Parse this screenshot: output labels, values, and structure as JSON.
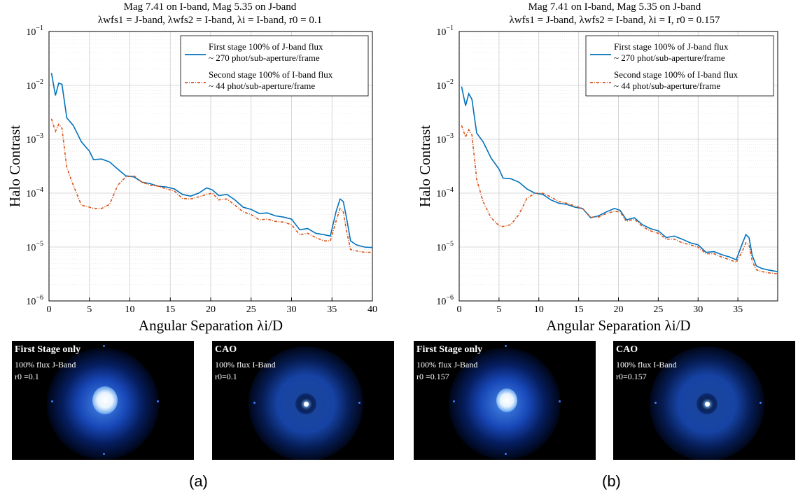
{
  "panels": [
    {
      "id": "a",
      "label": "(a)",
      "title_line1": "Mag 7.41 on I-band, Mag 5.35 on J-band",
      "title_line2": "λwfs1 = J-band, λwfs2 = I-band, λi = I-band, r0 = 0.1",
      "images": [
        {
          "title": "First Stage only",
          "line1": "100% flux J-Band",
          "line2": "r0 =0.1",
          "type": "first"
        },
        {
          "title": "CAO",
          "line1": "100% flux I-Band",
          "line2": "r0=0.1",
          "type": "cao"
        }
      ]
    },
    {
      "id": "b",
      "label": "(b)",
      "title_line1": "Mag 7.41 on I-band, Mag 5.35 on J-band",
      "title_line2": "λwfs1 = J-band, λwfs2 = I-band, λi = I, r0 = 0.157",
      "images": [
        {
          "title": "First Stage only",
          "line1": "100% flux J-Band",
          "line2": "r0 =0.157",
          "type": "first"
        },
        {
          "title": "CAO",
          "line1": "100% flux I-Band",
          "line2": "r0=0.157",
          "type": "cao"
        }
      ]
    }
  ],
  "chart_data": [
    {
      "type": "line",
      "xlabel": "Angular Separation λi/D",
      "ylabel": "Halo Contrast",
      "xlim": [
        0,
        40
      ],
      "ylim": [
        1e-06,
        0.1
      ],
      "yscale": "log",
      "xticks": [
        0,
        5,
        10,
        15,
        20,
        25,
        30,
        35,
        40
      ],
      "yticks": [
        "10^-6",
        "10^-5",
        "10^-4",
        "10^-3",
        "10^-2",
        "10^-1"
      ],
      "grid": true,
      "legend_position": "top-right",
      "colors": {
        "series1": "#0072bd",
        "series2": "#d95319"
      },
      "series": [
        {
          "name": "First stage 100% of J-band flux",
          "name_line2": "~ 270 phot/sub-aperture/frame",
          "style": "solid",
          "x": [
            0.3,
            0.8,
            1.2,
            1.6,
            2.2,
            3,
            4,
            5,
            5.5,
            6.5,
            7.5,
            8.5,
            9.5,
            10.5,
            11.5,
            12.5,
            13.5,
            14.5,
            15.5,
            16.5,
            17.5,
            18.5,
            19.5,
            20.2,
            21,
            22,
            23,
            24,
            25,
            26,
            27,
            28,
            29,
            30,
            31,
            32,
            33,
            34,
            34.8,
            35.5,
            36,
            36.4,
            36.8,
            37.3,
            38,
            39,
            40
          ],
          "y": [
            0.017,
            0.0065,
            0.011,
            0.0105,
            0.0025,
            0.0018,
            0.0009,
            0.0006,
            0.00042,
            0.00043,
            0.00038,
            0.00028,
            0.00021,
            0.0002,
            0.00016,
            0.00015,
            0.000135,
            0.00013,
            0.00012,
            9.5e-05,
            8.8e-05,
            0.0001,
            0.000125,
            0.000115,
            9e-05,
            9.5e-05,
            7.5e-05,
            5.5e-05,
            5e-05,
            4.2e-05,
            4.3e-05,
            3.8e-05,
            3.6e-05,
            3.3e-05,
            2.1e-05,
            2.2e-05,
            1.8e-05,
            1.7e-05,
            1.6e-05,
            4.5e-05,
            7.8e-05,
            7e-05,
            3.5e-05,
            1.3e-05,
            1.1e-05,
            1e-05,
            9.8e-06
          ]
        },
        {
          "name": "Second stage 100% of I-band flux",
          "name_line2": "~ 44 phot/sub-aperture/frame",
          "style": "dashed",
          "x": [
            0.3,
            0.8,
            1.2,
            1.6,
            2.2,
            3,
            4,
            5,
            5.5,
            6.5,
            7.5,
            8.5,
            9.5,
            10.5,
            11.5,
            12.5,
            13.5,
            14.5,
            15.5,
            16.5,
            17.5,
            18.5,
            19.5,
            20.2,
            21,
            22,
            23,
            24,
            25,
            26,
            27,
            28,
            29,
            30,
            31,
            32,
            33,
            34,
            34.8,
            35.5,
            36,
            36.4,
            36.8,
            37.3,
            38,
            39,
            40
          ],
          "y": [
            0.0024,
            0.0014,
            0.0019,
            0.0016,
            0.0003,
            0.00014,
            6e-05,
            5.5e-05,
            5.2e-05,
            5.2e-05,
            6.2e-05,
            0.00014,
            0.0002,
            0.00021,
            0.00016,
            0.00014,
            0.000135,
            0.00012,
            0.00011,
            8e-05,
            7.8e-05,
            8.5e-05,
            9.5e-05,
            0.0001,
            7.5e-05,
            7.8e-05,
            6e-05,
            4.5e-05,
            4e-05,
            3.2e-05,
            3.3e-05,
            3e-05,
            2.9e-05,
            2.6e-05,
            1.7e-05,
            1.8e-05,
            1.5e-05,
            1.3e-05,
            1.3e-05,
            3e-05,
            5.2e-05,
            4.5e-05,
            2e-05,
            9e-06,
            8.5e-06,
            8e-06,
            8e-06
          ]
        }
      ]
    },
    {
      "type": "line",
      "xlabel": "Angular Separation λi/D",
      "ylabel": "Halo Contrast",
      "xlim": [
        0,
        40
      ],
      "ylim": [
        1e-06,
        0.1
      ],
      "yscale": "log",
      "xticks": [
        0,
        5,
        10,
        15,
        20,
        25,
        30,
        35
      ],
      "yticks": [
        "10^-6",
        "10^-5",
        "10^-4",
        "10^-3",
        "10^-2",
        "10^-1"
      ],
      "grid": true,
      "legend_position": "top-right",
      "colors": {
        "series1": "#0072bd",
        "series2": "#d95319"
      },
      "series": [
        {
          "name": "First stage 100% of J-band flux",
          "name_line2": "~ 270 phot/sub-aperture/frame",
          "style": "solid",
          "x": [
            0.3,
            0.8,
            1.2,
            1.6,
            2.2,
            3,
            4,
            5,
            5.5,
            6.5,
            7.5,
            8.5,
            9.5,
            10.5,
            11.5,
            12.5,
            13.5,
            14.5,
            15.5,
            16.5,
            17.5,
            18.5,
            19.5,
            20.2,
            21,
            22,
            23,
            24,
            25,
            26,
            27,
            28,
            29,
            30,
            31,
            32,
            33,
            34,
            34.8,
            35.5,
            36,
            36.4,
            36.8,
            37.3,
            38,
            39,
            40
          ],
          "y": [
            0.0095,
            0.0042,
            0.007,
            0.0055,
            0.0013,
            0.0009,
            0.00045,
            0.00028,
            0.00019,
            0.000185,
            0.00016,
            0.00012,
            0.0001,
            9.5e-05,
            7.5e-05,
            6.5e-05,
            6.2e-05,
            5.5e-05,
            5.2e-05,
            3.5e-05,
            3.8e-05,
            4.5e-05,
            5.2e-05,
            4.8e-05,
            3.2e-05,
            3.5e-05,
            2.6e-05,
            2.2e-05,
            2e-05,
            1.5e-05,
            1.6e-05,
            1.4e-05,
            1.2e-05,
            1.1e-05,
            8e-06,
            8.2e-06,
            7.2e-06,
            6.5e-06,
            5.8e-06,
            1.1e-05,
            1.7e-05,
            1.5e-05,
            7e-06,
            4.5e-06,
            4e-06,
            3.7e-06,
            3.5e-06
          ]
        },
        {
          "name": "Second stage 100% of I-band flux",
          "name_line2": "~ 44 phot/sub-aperture/frame",
          "style": "dashed",
          "x": [
            0.3,
            0.8,
            1.2,
            1.6,
            2.2,
            3,
            4,
            5,
            5.5,
            6.5,
            7.5,
            8.5,
            9.5,
            10.5,
            11.5,
            12.5,
            13.5,
            14.5,
            15.5,
            16.5,
            17.5,
            18.5,
            19.5,
            20.2,
            21,
            22,
            23,
            24,
            25,
            26,
            27,
            28,
            29,
            30,
            31,
            32,
            33,
            34,
            34.8,
            35.5,
            36,
            36.4,
            36.8,
            37.3,
            38,
            39,
            40
          ],
          "y": [
            0.0018,
            0.0011,
            0.0015,
            0.0012,
            0.00018,
            7e-05,
            3.5e-05,
            2.5e-05,
            2.4e-05,
            2.6e-05,
            4e-05,
            8e-05,
            0.0001,
            0.0001,
            8.5e-05,
            7e-05,
            6.5e-05,
            5.8e-05,
            5.2e-05,
            3.6e-05,
            3.6e-05,
            4.2e-05,
            4.6e-05,
            4.5e-05,
            3e-05,
            3.3e-05,
            2.4e-05,
            2e-05,
            1.8e-05,
            1.4e-05,
            1.4e-05,
            1.2e-05,
            1.1e-05,
            1e-05,
            7.5e-06,
            7.5e-06,
            6.5e-06,
            5.8e-06,
            5.2e-06,
            8e-06,
            1.2e-05,
            1.1e-05,
            5.5e-06,
            3.8e-06,
            3.5e-06,
            3.3e-06,
            3.2e-06
          ]
        }
      ]
    }
  ]
}
